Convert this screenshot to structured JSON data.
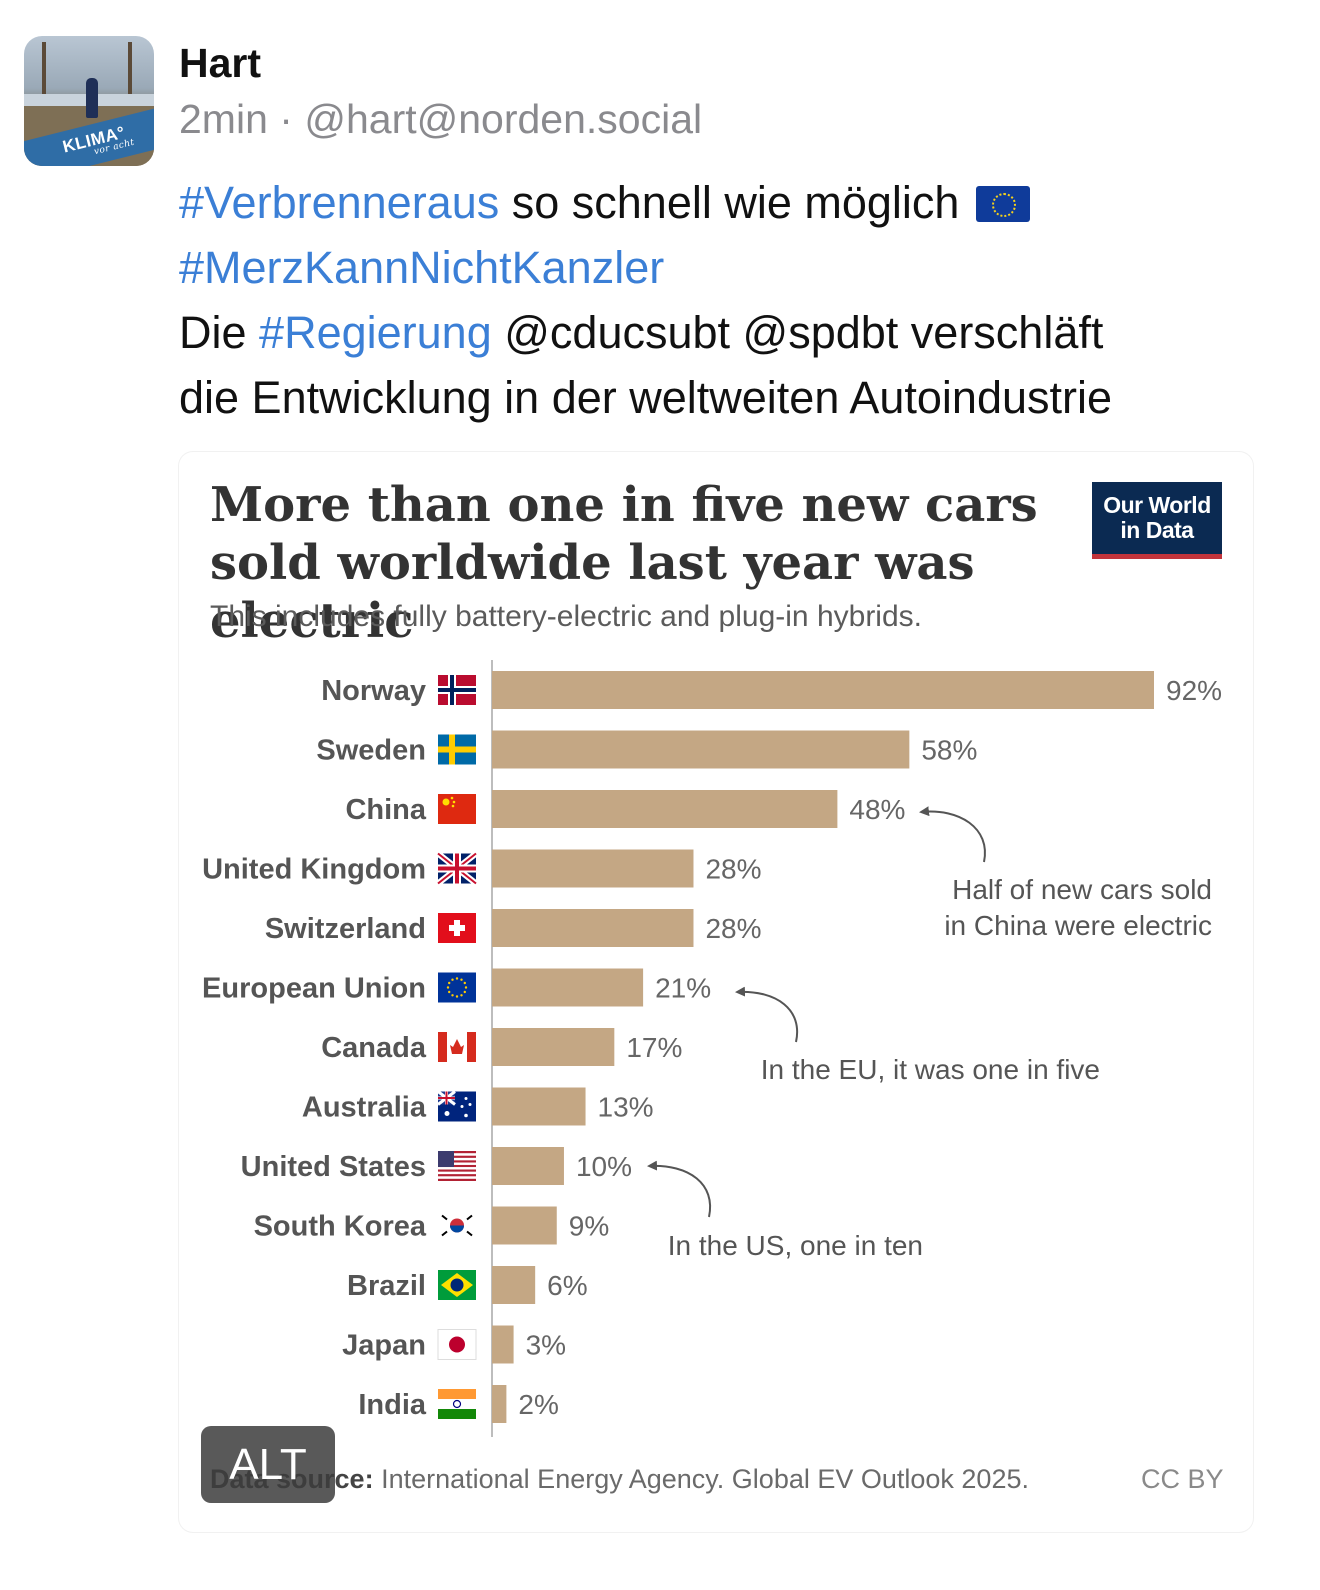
{
  "post": {
    "author_name": "Hart",
    "time": "2min",
    "separator": "·",
    "handle": "@hart@norden.social",
    "avatar_text": "KLIMA°",
    "avatar_subtext": "vor acht",
    "line1_tag": "#Verbrenneraus",
    "line1_text": "so schnell wie möglich",
    "line1_emoji": "eu-flag-icon",
    "line2_tag": "#MerzKannNichtKanzler",
    "line3_pre": "Die",
    "line3_tag": "#Regierung",
    "line3_text": "@cducsubt @spdbt verschläft",
    "line4_text": "die Entwicklung in der weltweiten Autoindustrie",
    "alt_label": "ALT",
    "hashtag_color": "#3b7fd6"
  },
  "chart": {
    "logo_line1": "Our World",
    "logo_line2": "in Data",
    "source_label": "Data source:",
    "source_text": "International Energy Agency. Global EV Outlook 2025.",
    "license": "CC BY"
  },
  "chart_data": {
    "type": "bar",
    "orientation": "horizontal",
    "title": "More than one in five new cars sold worldwide last year was electric",
    "subtitle": "This includes fully battery-electric and plug-in hybrids.",
    "categories": [
      "Norway",
      "Sweden",
      "China",
      "United Kingdom",
      "Switzerland",
      "European Union",
      "Canada",
      "Australia",
      "United States",
      "South Korea",
      "Brazil",
      "Japan",
      "India"
    ],
    "values": [
      92,
      58,
      48,
      28,
      28,
      21,
      17,
      13,
      10,
      9,
      6,
      3,
      2
    ],
    "value_labels": [
      "92%",
      "58%",
      "48%",
      "28%",
      "28%",
      "21%",
      "17%",
      "13%",
      "10%",
      "9%",
      "6%",
      "3%",
      "2%"
    ],
    "flags": [
      "norway-flag-icon",
      "sweden-flag-icon",
      "china-flag-icon",
      "uk-flag-icon",
      "switzerland-flag-icon",
      "eu-flag-icon",
      "canada-flag-icon",
      "australia-flag-icon",
      "us-flag-icon",
      "south-korea-flag-icon",
      "brazil-flag-icon",
      "japan-flag-icon",
      "india-flag-icon"
    ],
    "xlim": [
      0,
      92
    ],
    "bar_color": "#c4a784",
    "grid": false,
    "annotations": [
      {
        "target": "China",
        "lines": [
          "Half of new cars sold",
          "in China were electric"
        ]
      },
      {
        "target": "European Union",
        "lines": [
          "In the EU, it was one in five"
        ]
      },
      {
        "target": "United States",
        "lines": [
          "In the US, one in ten"
        ]
      }
    ]
  }
}
